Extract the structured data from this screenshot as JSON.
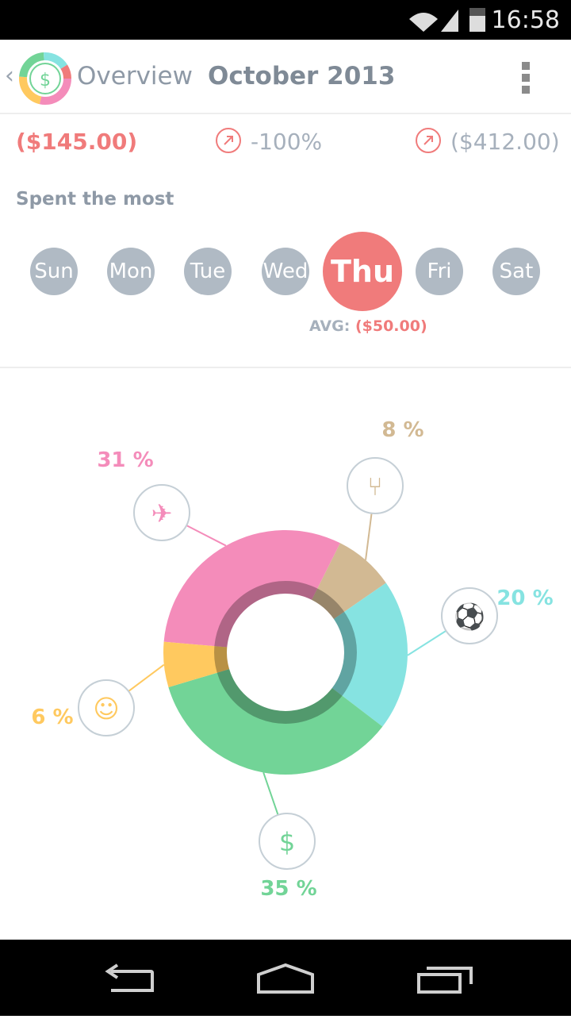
{
  "status": {
    "time": "16:58"
  },
  "header": {
    "title": "Overview",
    "subtitle": "October 2013"
  },
  "stats": {
    "amount": "($145.00)",
    "percent": "-100%",
    "total": "($412.00)"
  },
  "spent_most": {
    "label": "Spent the most",
    "days": [
      "Sun",
      "Mon",
      "Tue",
      "Wed",
      "Thu",
      "Fri",
      "Sat"
    ],
    "active_day": "Thu",
    "avg_label": "AVG:",
    "avg_value": "($50.00)"
  },
  "colors": {
    "accent": "#f07b7b",
    "travel": "#f48cba",
    "food": "#d2b993",
    "sports": "#86e3e1",
    "money": "#72d497",
    "entertainment": "#ffc95f"
  },
  "chart_data": {
    "type": "pie",
    "categories": [
      "travel",
      "food",
      "sports",
      "money",
      "entertainment"
    ],
    "values": [
      31,
      8,
      20,
      35,
      6
    ],
    "labels": [
      "31 %",
      "8 %",
      "20 %",
      "35 %",
      "6 %"
    ],
    "icons": [
      "airplane-icon",
      "fork-knife-icon",
      "soccer-ball-icon",
      "wallet-icon",
      "theater-masks-icon"
    ]
  }
}
